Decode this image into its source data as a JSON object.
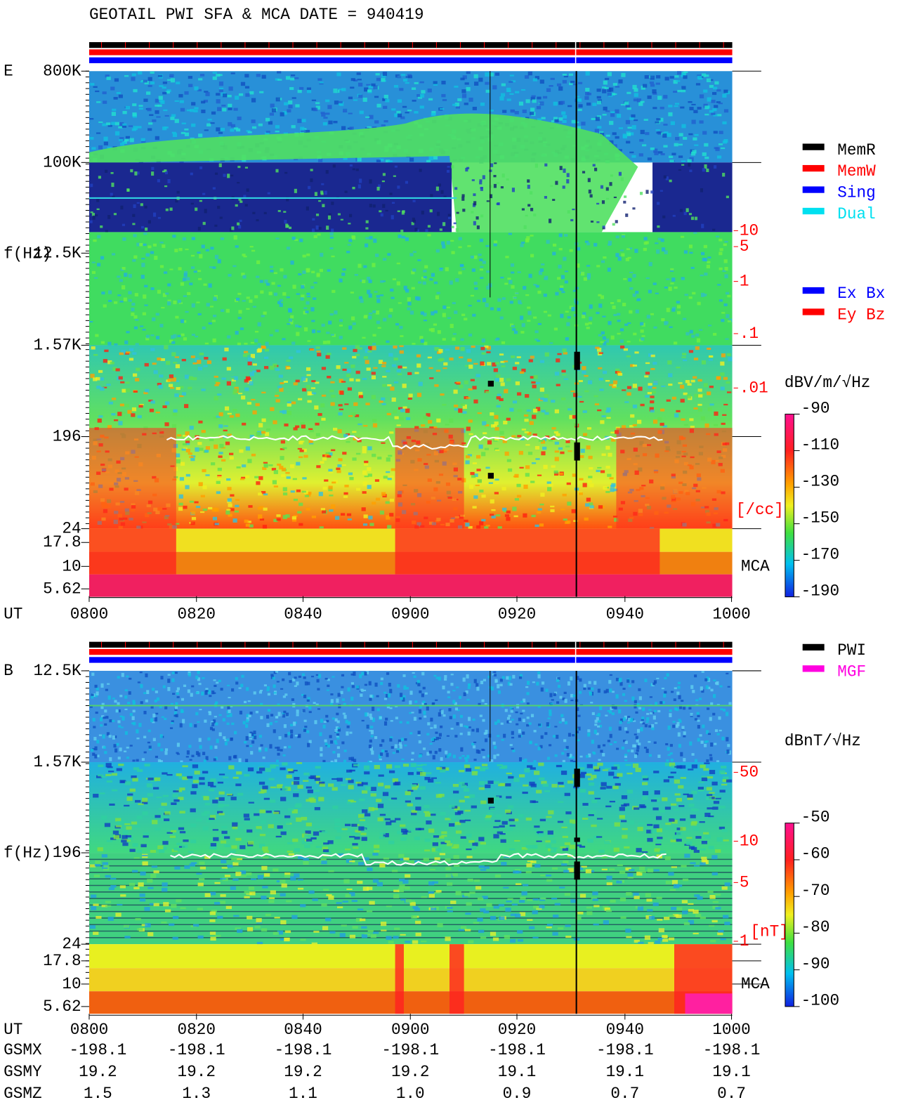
{
  "title": "GEOTAIL  PWI SFA & MCA   DATE = 940419",
  "panels": [
    {
      "label": "E",
      "ylabel": "f(Hz)",
      "xlabel": "UT",
      "yticks": [
        "800K",
        "100K",
        "12.5K",
        "1.57K",
        "196",
        "24",
        "17.8",
        "10",
        "5.62"
      ],
      "xticks": [
        "0800",
        "0820",
        "0840",
        "0900",
        "0920",
        "0940",
        "1000"
      ],
      "right_scale": [
        "10",
        "5",
        "1",
        ".1",
        ".01"
      ],
      "right_unit": "[/cc]",
      "mca": "MCA",
      "legend": [
        {
          "name": "MemR",
          "color": "#000000"
        },
        {
          "name": "MemW",
          "color": "#ff0000"
        },
        {
          "name": "Sing",
          "color": "#0000ff"
        },
        {
          "name": "Dual",
          "color": "#00e0f0"
        }
      ],
      "legend2": [
        {
          "name": "Ex Bx",
          "color": "#0000ff"
        },
        {
          "name": "Ey Bz",
          "color": "#ff0000"
        }
      ],
      "colorbar_unit": "dBV/m/√Hz",
      "colorbar_ticks": [
        "-90",
        "-110",
        "-130",
        "-150",
        "-170",
        "-190"
      ]
    },
    {
      "label": "B",
      "ylabel": "f(Hz)",
      "xlabel": "UT",
      "yticks": [
        "12.5K",
        "1.57K",
        "196",
        "24",
        "17.8",
        "10",
        "5.62"
      ],
      "xticks": [
        "0800",
        "0820",
        "0840",
        "0900",
        "0920",
        "0940",
        "1000"
      ],
      "right_scale": [
        "50",
        "10",
        "5",
        "1"
      ],
      "right_unit": "[nT]",
      "mca": "MCA",
      "legend": [
        {
          "name": "PWI",
          "color": "#000000"
        },
        {
          "name": "MGF",
          "color": "#ff00e0"
        }
      ],
      "colorbar_unit": "dBnT/√Hz",
      "colorbar_ticks": [
        "-50",
        "-60",
        "-70",
        "-80",
        "-90",
        "-100"
      ]
    }
  ],
  "orbit": [
    {
      "label": "GSMX",
      "values": [
        "-198.1",
        "-198.1",
        "-198.1",
        "-198.1",
        "-198.1",
        "-198.1",
        "-198.1"
      ]
    },
    {
      "label": "GSMY",
      "values": [
        "19.2",
        "19.2",
        "19.2",
        "19.2",
        "19.1",
        "19.1",
        "19.1"
      ]
    },
    {
      "label": "GSMZ",
      "values": [
        "1.5",
        "1.3",
        "1.1",
        "1.0",
        "0.9",
        "0.7",
        "0.7"
      ]
    }
  ]
}
